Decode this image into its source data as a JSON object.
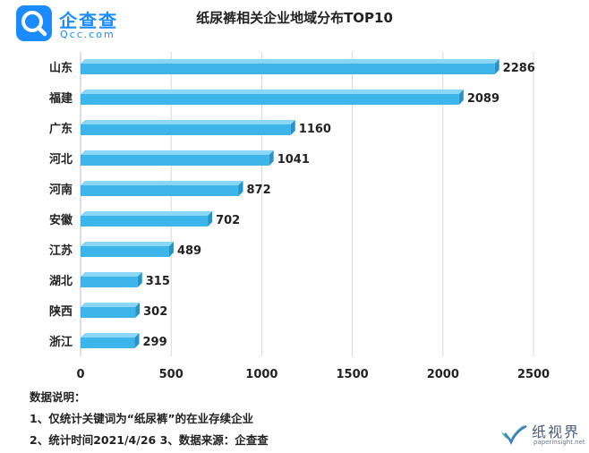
{
  "logo": {
    "cn": "企查查",
    "en": "Qcc.com",
    "icon": "qcc-magnifier-icon",
    "color": "#1a8cff"
  },
  "chart_data": {
    "type": "bar",
    "orientation": "horizontal",
    "title": "纸尿裤相关企业地域分布TOP10",
    "categories": [
      "山东",
      "福建",
      "广东",
      "河北",
      "河南",
      "安徽",
      "江苏",
      "湖北",
      "陕西",
      "浙江"
    ],
    "values": [
      2286,
      2089,
      1160,
      1041,
      872,
      702,
      489,
      315,
      302,
      299
    ],
    "data_labels": [
      "2286",
      "2089",
      "1160",
      "1041",
      "872",
      "702",
      "489",
      "315",
      "302",
      "299"
    ],
    "xlim": [
      0,
      2500
    ],
    "xticks": [
      0,
      500,
      1000,
      1500,
      2000,
      2500
    ],
    "xtick_labels": [
      "0",
      "500",
      "1000",
      "1500",
      "2000",
      "2500"
    ],
    "grid": "vertical",
    "bar_style": "3d",
    "bar_color": "#3db4ea",
    "bar_top_color": "#8ad6f6",
    "bar_side_color": "#2a93c6"
  },
  "notes": {
    "heading": "数据说明：",
    "line1": "1、仅统计关键词为“纸尿裤”的在业存续企业",
    "line2": "2、统计时间2021/4/26    3、数据来源：企查查"
  },
  "watermark": {
    "cn": "纸视界",
    "en": "paperinsight.net",
    "icon": "leaf-check-icon"
  }
}
